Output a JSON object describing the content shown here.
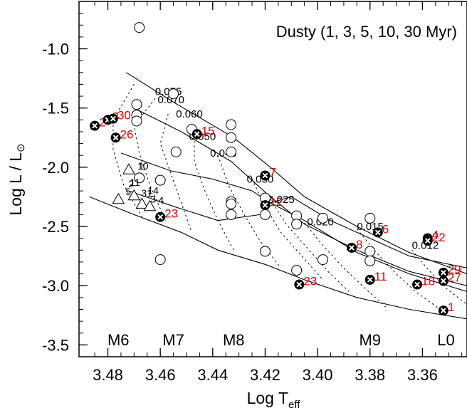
{
  "chart_data": {
    "type": "scatter",
    "title": "Dusty (1, 3, 5, 10, 30 Myr)",
    "xlabel": "Log T",
    "xlabel_sub": "eff",
    "ylabel": "Log L / L",
    "ylabel_symbol": "⊙",
    "xlim": [
      3.491,
      3.343
    ],
    "ylim": [
      -3.6,
      -0.6
    ],
    "xticks": [
      3.48,
      3.46,
      3.44,
      3.42,
      3.4,
      3.38,
      3.36
    ],
    "xtick_labels": [
      "3.48",
      "3.46",
      "3.44",
      "3.42",
      "3.40",
      "3.38",
      "3.36"
    ],
    "yticks": [
      -1.0,
      -1.5,
      -2.0,
      -2.5,
      -3.0,
      -3.5
    ],
    "ytick_labels": [
      "-1.0",
      "-1.5",
      "-2.0",
      "-2.5",
      "-3.0",
      "-3.5"
    ],
    "spectral_types": [
      {
        "label": "M6",
        "x": 3.476
      },
      {
        "label": "M7",
        "x": 3.455
      },
      {
        "label": "M8",
        "x": 3.432
      },
      {
        "label": "M9",
        "x": 3.38
      },
      {
        "label": "L0",
        "x": 3.351
      }
    ],
    "isochrones": [
      {
        "age_myr": 1,
        "points": [
          [
            3.473,
            -1.2
          ],
          [
            3.455,
            -1.45
          ],
          [
            3.432,
            -1.75
          ],
          [
            3.418,
            -2.0
          ],
          [
            3.405,
            -2.25
          ],
          [
            3.385,
            -2.5
          ],
          [
            3.365,
            -2.72
          ],
          [
            3.343,
            -2.9
          ]
        ]
      },
      {
        "age_myr": 3,
        "points": [
          [
            3.47,
            -1.5
          ],
          [
            3.452,
            -1.7
          ],
          [
            3.433,
            -1.95
          ],
          [
            3.418,
            -2.25
          ],
          [
            3.405,
            -2.48
          ],
          [
            3.385,
            -2.7
          ],
          [
            3.365,
            -2.88
          ],
          [
            3.343,
            -3.0
          ]
        ]
      },
      {
        "age_myr": 5,
        "points": [
          [
            3.475,
            -1.88
          ],
          [
            3.456,
            -2.03
          ],
          [
            3.44,
            -2.1
          ],
          [
            3.425,
            -2.2
          ],
          [
            3.418,
            -2.3
          ],
          [
            3.405,
            -2.45
          ],
          [
            3.385,
            -2.72
          ],
          [
            3.365,
            -2.9
          ],
          [
            3.343,
            -3.05
          ]
        ]
      },
      {
        "age_myr": 10,
        "points": [
          [
            3.472,
            -2.2
          ],
          [
            3.455,
            -2.33
          ],
          [
            3.438,
            -2.45
          ],
          [
            3.422,
            -2.4
          ],
          [
            3.418,
            -2.3
          ],
          [
            3.41,
            -2.25
          ],
          [
            3.395,
            -2.45
          ],
          [
            3.38,
            -2.6
          ],
          [
            3.365,
            -2.75
          ],
          [
            3.343,
            -2.85
          ]
        ]
      },
      {
        "age_myr": 30,
        "points": [
          [
            3.487,
            -2.25
          ],
          [
            3.47,
            -2.4
          ],
          [
            3.452,
            -2.55
          ],
          [
            3.438,
            -2.7
          ],
          [
            3.42,
            -2.82
          ],
          [
            3.405,
            -2.95
          ],
          [
            3.385,
            -3.1
          ],
          [
            3.365,
            -3.2
          ],
          [
            3.343,
            -3.28
          ]
        ]
      }
    ],
    "mass_tracks": [
      {
        "mass": "0.075",
        "label_at": [
          3.462,
          -1.36
        ],
        "points": [
          [
            3.47,
            -1.3
          ],
          [
            3.478,
            -1.6
          ],
          [
            3.478,
            -1.85
          ],
          [
            3.474,
            -2.15
          ],
          [
            3.467,
            -2.42
          ]
        ]
      },
      {
        "mass": "0.070",
        "label_at": [
          3.461,
          -1.43
        ],
        "points": [
          [
            3.462,
            -1.42
          ],
          [
            3.47,
            -1.65
          ],
          [
            3.468,
            -1.88
          ],
          [
            3.464,
            -2.15
          ],
          [
            3.458,
            -2.45
          ]
        ]
      },
      {
        "mass": "0.060",
        "label_at": [
          3.454,
          -1.55
        ],
        "points": [
          [
            3.457,
            -1.55
          ],
          [
            3.46,
            -1.8
          ],
          [
            3.456,
            -2.05
          ],
          [
            3.452,
            -2.3
          ],
          [
            3.448,
            -2.55
          ]
        ]
      },
      {
        "mass": "0.050",
        "label_at": [
          3.449,
          -1.74
        ],
        "points": [
          [
            3.447,
            -1.7
          ],
          [
            3.447,
            -1.95
          ],
          [
            3.443,
            -2.2
          ],
          [
            3.438,
            -2.45
          ],
          [
            3.432,
            -2.7
          ]
        ]
      },
      {
        "mass": "0.040",
        "label_at": [
          3.441,
          -1.88
        ],
        "points": [
          [
            3.438,
            -1.9
          ],
          [
            3.434,
            -2.15
          ],
          [
            3.428,
            -2.4
          ],
          [
            3.422,
            -2.62
          ],
          [
            3.414,
            -2.85
          ]
        ]
      },
      {
        "mass": "0.030",
        "label_at": [
          3.427,
          -2.1
        ],
        "points": [
          [
            3.425,
            -2.1
          ],
          [
            3.42,
            -2.33
          ],
          [
            3.414,
            -2.55
          ],
          [
            3.406,
            -2.75
          ],
          [
            3.398,
            -2.95
          ]
        ]
      },
      {
        "mass": "0.025",
        "label_at": [
          3.419,
          -2.27
        ],
        "points": [
          [
            3.418,
            -2.27
          ],
          [
            3.412,
            -2.48
          ],
          [
            3.404,
            -2.68
          ],
          [
            3.396,
            -2.88
          ],
          [
            3.388,
            -3.05
          ]
        ]
      },
      {
        "mass": "0.020",
        "label_at": [
          3.404,
          -2.46
        ],
        "points": [
          [
            3.405,
            -2.47
          ],
          [
            3.398,
            -2.66
          ],
          [
            3.39,
            -2.85
          ],
          [
            3.382,
            -3.02
          ],
          [
            3.374,
            -3.18
          ]
        ]
      },
      {
        "mass": "0.015",
        "label_at": [
          3.385,
          -2.5
        ],
        "points": [
          [
            3.385,
            -2.52
          ],
          [
            3.378,
            -2.71
          ],
          [
            3.37,
            -2.9
          ],
          [
            3.362,
            -3.06
          ],
          [
            3.352,
            -3.22
          ]
        ]
      },
      {
        "mass": "0.012",
        "label_at": [
          3.364,
          -2.66
        ],
        "points": [
          [
            3.364,
            -2.7
          ],
          [
            3.358,
            -2.86
          ],
          [
            3.351,
            -3.02
          ],
          [
            3.343,
            -3.16
          ]
        ]
      }
    ],
    "mass_labels": [
      "1",
      "2",
      "3",
      "4",
      "5",
      "10",
      "11",
      "14",
      "31"
    ],
    "open_circles": [
      [
        3.468,
        -0.82
      ],
      [
        3.455,
        -1.38
      ],
      [
        3.469,
        -1.47
      ],
      [
        3.469,
        -1.56
      ],
      [
        3.469,
        -1.61
      ],
      [
        3.448,
        -1.68
      ],
      [
        3.454,
        -1.87
      ],
      [
        3.433,
        -1.64
      ],
      [
        3.433,
        -1.75
      ],
      [
        3.433,
        -1.87
      ],
      [
        3.468,
        -2.09
      ],
      [
        3.46,
        -2.11
      ],
      [
        3.433,
        -2.29
      ],
      [
        3.433,
        -2.31
      ],
      [
        3.433,
        -2.4
      ],
      [
        3.42,
        -2.26
      ],
      [
        3.42,
        -2.4
      ],
      [
        3.42,
        -2.71
      ],
      [
        3.46,
        -2.78
      ],
      [
        3.408,
        -2.41
      ],
      [
        3.408,
        -2.48
      ],
      [
        3.408,
        -2.87
      ],
      [
        3.398,
        -2.43
      ],
      [
        3.398,
        -2.78
      ],
      [
        3.38,
        -2.43
      ],
      [
        3.38,
        -2.71
      ],
      [
        3.38,
        -2.79
      ]
    ],
    "triangles": [
      [
        3.472,
        -2.02
      ],
      [
        3.47,
        -2.24
      ],
      [
        3.467,
        -2.31
      ],
      [
        3.464,
        -2.33
      ],
      [
        3.476,
        -2.27
      ]
    ],
    "sources": [
      {
        "id": "1",
        "x": 3.352,
        "y": -3.21
      },
      {
        "id": "2",
        "x": 3.485,
        "y": -1.65
      },
      {
        "id": "3",
        "x": 3.48,
        "y": -1.6
      },
      {
        "id": "4",
        "x": 3.358,
        "y": -2.6
      },
      {
        "id": "6",
        "x": 3.377,
        "y": -2.55
      },
      {
        "id": "7",
        "x": 3.42,
        "y": -2.07
      },
      {
        "id": "8",
        "x": 3.387,
        "y": -2.68
      },
      {
        "id": "11",
        "x": 3.38,
        "y": -2.95
      },
      {
        "id": "12",
        "x": 3.42,
        "y": -2.32
      },
      {
        "id": "15",
        "x": 3.446,
        "y": -1.72
      },
      {
        "id": "18",
        "x": 3.362,
        "y": -2.99
      },
      {
        "id": "22",
        "x": 3.358,
        "y": -2.62
      },
      {
        "id": "23",
        "x": 3.407,
        "y": -2.99
      },
      {
        "id": "23",
        "x": 3.46,
        "y": -2.42
      },
      {
        "id": "26",
        "x": 3.477,
        "y": -1.75
      },
      {
        "id": "27",
        "x": 3.352,
        "y": -2.96
      },
      {
        "id": "29",
        "x": 3.352,
        "y": -2.89
      },
      {
        "id": "30",
        "x": 3.478,
        "y": -1.59
      }
    ]
  }
}
